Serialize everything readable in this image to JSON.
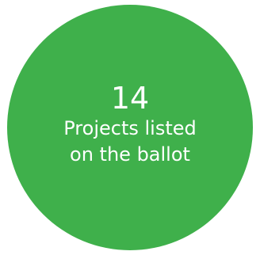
{
  "stat": {
    "number": "14",
    "label_line1": "Projects listed",
    "label_line2": "on the ballot",
    "circle_color": "#3fb04b",
    "text_color": "#ffffff"
  }
}
